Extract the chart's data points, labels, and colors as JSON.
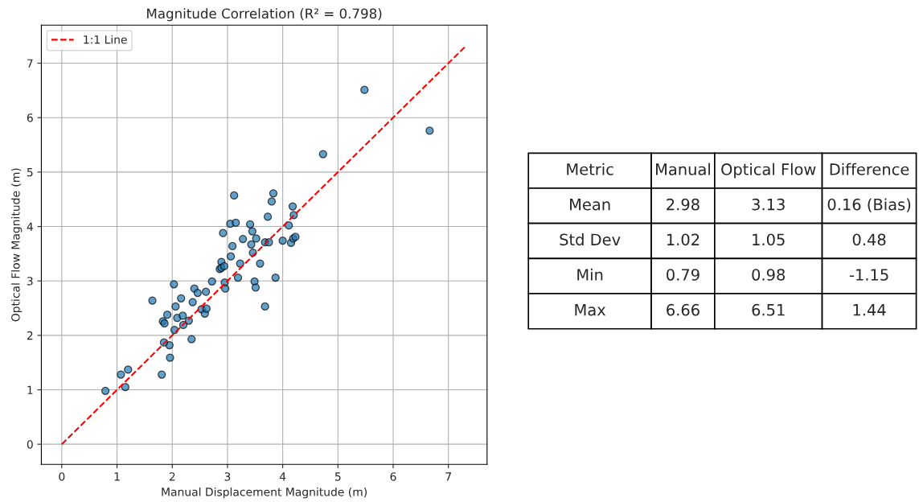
{
  "chart_data": [
    {
      "type": "scatter",
      "title": "Magnitude Correlation (R² = 0.798)",
      "xlabel": "Manual Displacement Magnitude (m)",
      "ylabel": "Optical Flow Magnitude (m)",
      "xlim": [
        -0.37,
        7.7
      ],
      "ylim": [
        -0.37,
        7.7
      ],
      "xticks": [
        0,
        1,
        2,
        3,
        4,
        5,
        6,
        7
      ],
      "yticks": [
        0,
        1,
        2,
        3,
        4,
        5,
        6,
        7
      ],
      "grid": true,
      "legend": "top left",
      "series": [
        {
          "type": "scatter",
          "color": "#1f77b4",
          "marker": "circle",
          "x": [
            0.79,
            1.07,
            1.2,
            1.15,
            1.81,
            1.96,
            1.95,
            1.85,
            1.83,
            1.86,
            1.91,
            1.64,
            2.04,
            2.03,
            2.06,
            2.09,
            2.19,
            2.16,
            2.2,
            2.3,
            2.35,
            2.37,
            2.4,
            2.46,
            2.53,
            2.59,
            2.62,
            2.61,
            2.72,
            2.86,
            2.89,
            2.89,
            2.94,
            2.92,
            2.95,
            2.96,
            3.05,
            3.15,
            3.12,
            3.09,
            3.06,
            3.23,
            3.19,
            3.28,
            3.41,
            3.45,
            3.43,
            3.46,
            3.52,
            3.49,
            3.51,
            3.59,
            3.68,
            3.68,
            3.75,
            3.73,
            3.8,
            3.83,
            3.87,
            4.0,
            4.11,
            4.15,
            4.18,
            4.2,
            4.19,
            4.23,
            4.73,
            5.48,
            6.66
          ],
          "values": [
            0.98,
            1.28,
            1.37,
            1.05,
            1.28,
            1.59,
            1.82,
            1.87,
            2.26,
            2.22,
            2.38,
            2.64,
            2.1,
            2.94,
            2.53,
            2.32,
            2.36,
            2.68,
            2.19,
            2.27,
            1.93,
            2.61,
            2.86,
            2.78,
            2.48,
            2.4,
            2.49,
            2.8,
            2.99,
            3.22,
            3.35,
            3.24,
            3.27,
            3.88,
            2.97,
            2.86,
            4.05,
            4.07,
            4.57,
            3.64,
            3.45,
            3.32,
            3.06,
            3.77,
            4.04,
            3.91,
            3.67,
            3.52,
            3.78,
            2.99,
            2.88,
            3.32,
            2.53,
            3.71,
            3.71,
            4.18,
            4.46,
            4.61,
            3.06,
            3.74,
            4.02,
            3.7,
            4.37,
            4.21,
            3.78,
            3.81,
            5.33,
            6.51,
            5.76
          ]
        },
        {
          "type": "line",
          "name": "1:1 Line",
          "color": "#ff0000",
          "line_style": "dashed",
          "marker": "none",
          "x": [
            0,
            7.33
          ],
          "values": [
            0,
            7.33
          ]
        }
      ]
    },
    {
      "type": "other",
      "categories": [
        "Metric",
        "Manual",
        "Optical Flow",
        "Difference"
      ],
      "cell_labels": [
        [
          "Mean",
          "2.98",
          "3.13",
          "0.16 (Bias)"
        ],
        [
          "Std Dev",
          "1.02",
          "1.05",
          "0.48"
        ],
        [
          "Min",
          "0.79",
          "0.98",
          "-1.15"
        ],
        [
          "Max",
          "6.66",
          "6.51",
          "1.44"
        ]
      ]
    }
  ]
}
